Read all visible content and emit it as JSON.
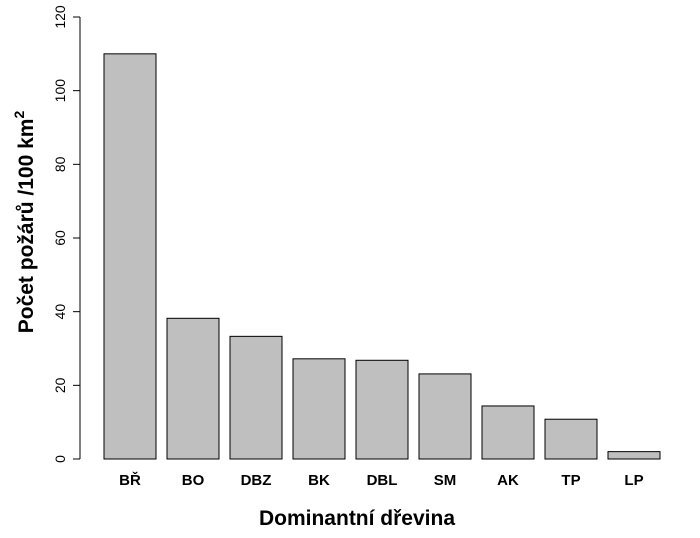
{
  "chart_data": {
    "type": "bar",
    "categories": [
      "BŘ",
      "BO",
      "DBZ",
      "BK",
      "DBL",
      "SM",
      "AK",
      "TP",
      "LP"
    ],
    "values": [
      110,
      38.2,
      33.3,
      27.2,
      26.8,
      23.1,
      14.4,
      10.8,
      2.0
    ],
    "xlabel": "Dominantní dřevina",
    "ylabel_main": "Počet požárů /100 km",
    "ylabel_sup": "2",
    "ylim": [
      0,
      120
    ],
    "yticks": [
      "0",
      "20",
      "40",
      "60",
      "80",
      "100",
      "120"
    ],
    "bar_color": "#bfbfbf",
    "bar_stroke": "#000000",
    "grid": false
  }
}
